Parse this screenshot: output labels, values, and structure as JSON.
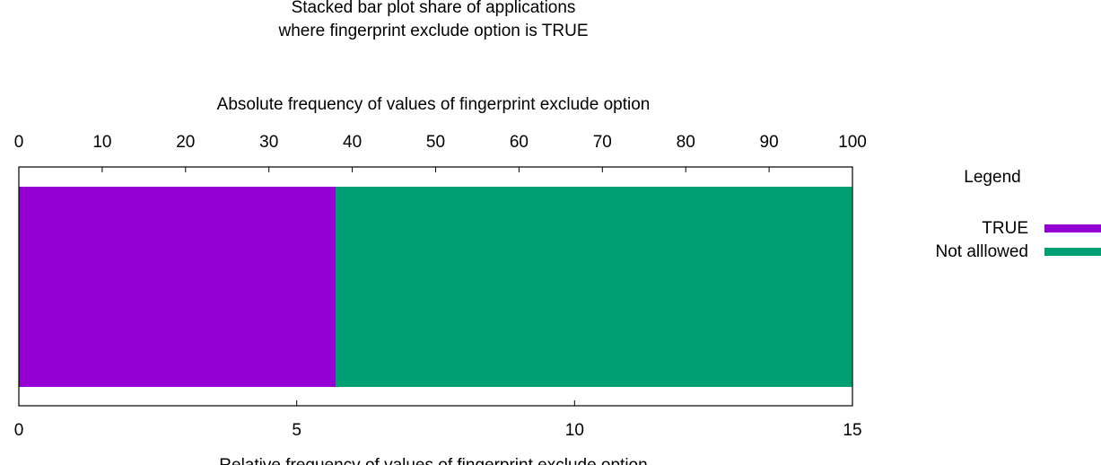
{
  "chart_data": {
    "type": "bar",
    "orientation": "horizontal",
    "stacked": true,
    "title_lines": [
      "Stacked bar plot share of applications",
      "where fingerprint exclude option is TRUE"
    ],
    "top_axis": {
      "label": "Absolute frequency of values of fingerprint exclude option",
      "range": [
        0,
        100
      ],
      "ticks": [
        "0",
        "10",
        "20",
        "30",
        "40",
        "50",
        "60",
        "70",
        "80",
        "90",
        "100"
      ]
    },
    "bottom_axis": {
      "label": "Relative frequency of values of fingerprint exclude option",
      "range": [
        0,
        15
      ],
      "ticks": [
        "0",
        "5",
        "10",
        "15"
      ]
    },
    "series": [
      {
        "name": "TRUE",
        "value": 5.7,
        "color": "#9400d3"
      },
      {
        "name": "Not alllowed",
        "value": 9.3,
        "color": "#009e73"
      }
    ],
    "legend": {
      "title": "Legend",
      "position": "right"
    }
  }
}
